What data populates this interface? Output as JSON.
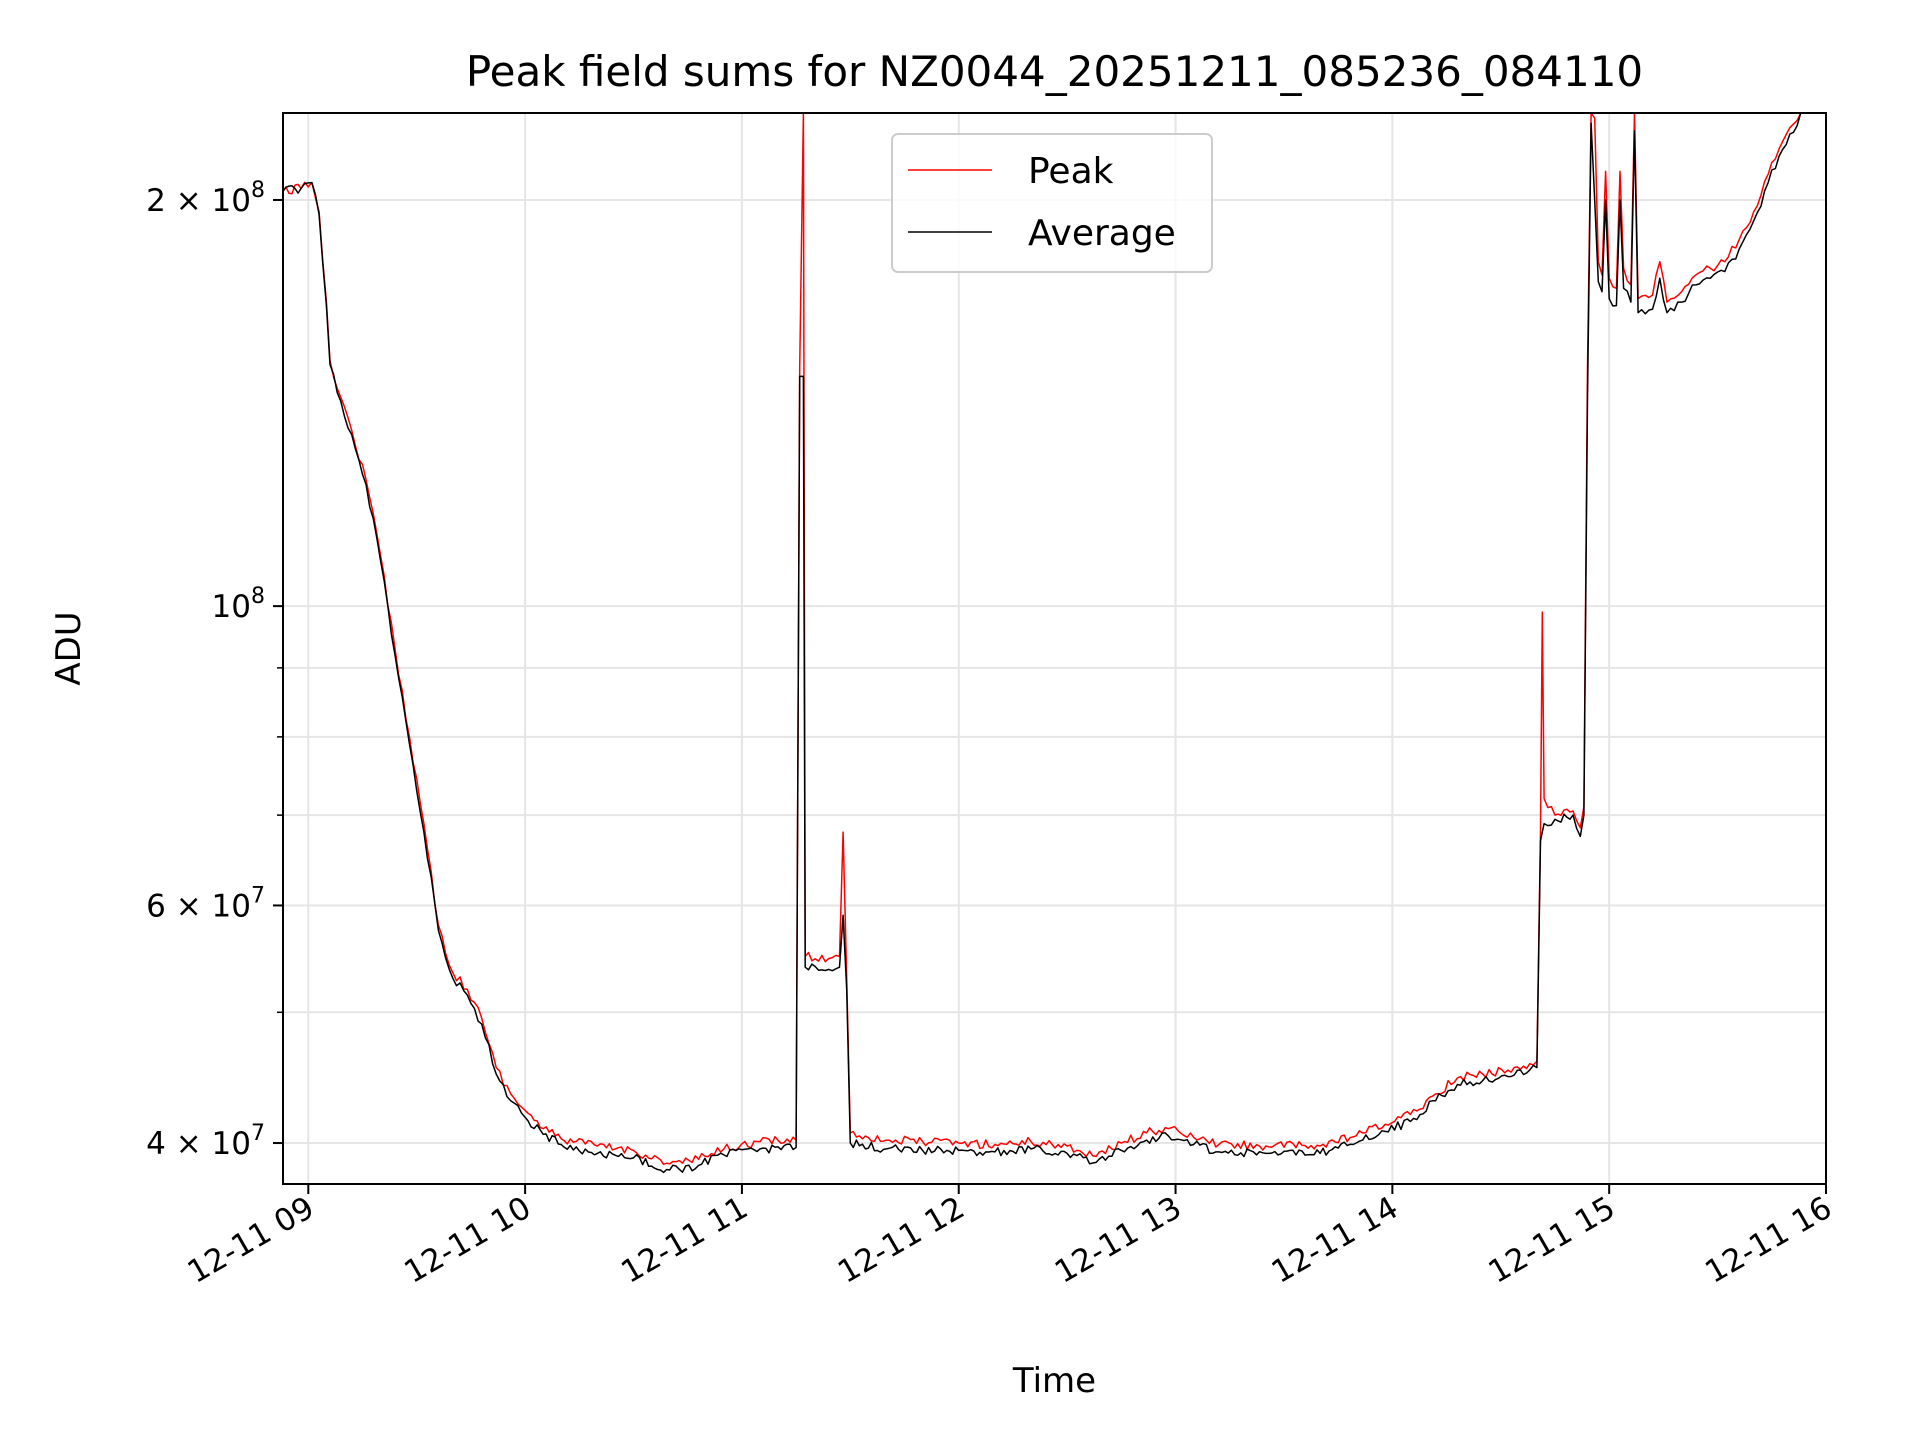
{
  "chart_data": {
    "type": "line",
    "title": "Peak field sums for NZ0044_20251211_085236_084110",
    "xlabel": "Time",
    "ylabel": "ADU",
    "yscale": "log",
    "ylim": [
      37300000,
      232000000
    ],
    "xlim": [
      "12-11 08:53",
      "12-11 16:00"
    ],
    "x_ticks": [
      "12-11 09",
      "12-11 10",
      "12-11 11",
      "12-11 12",
      "12-11 13",
      "12-11 14",
      "12-11 15",
      "12-11 16"
    ],
    "y_ticks": [
      {
        "value": 40000000,
        "label": "4 × 10⁷",
        "base": "4 × 10",
        "exp": "7"
      },
      {
        "value": 60000000,
        "label": "6 × 10⁷",
        "base": "6 × 10",
        "exp": "7"
      },
      {
        "value": 100000000,
        "label": "10⁸",
        "base": "10",
        "exp": "8"
      },
      {
        "value": 200000000,
        "label": "2 × 10⁸",
        "base": "2 × 10",
        "exp": "8"
      }
    ],
    "y_minor_ticks": [
      50000000,
      70000000,
      80000000,
      90000000
    ],
    "grid": true,
    "legend_position": "top-center",
    "series": [
      {
        "name": "Peak",
        "color": "#ff0000",
        "points": [
          [
            "08:53",
            203000000
          ],
          [
            "08:58",
            204000000
          ],
          [
            "09:01",
            206000000
          ],
          [
            "09:03",
            196000000
          ],
          [
            "09:05",
            168000000
          ],
          [
            "09:06",
            152000000
          ],
          [
            "09:08",
            145000000
          ],
          [
            "09:12",
            135000000
          ],
          [
            "09:16",
            124000000
          ],
          [
            "09:20",
            109000000
          ],
          [
            "09:24",
            93000000
          ],
          [
            "09:28",
            80000000
          ],
          [
            "09:32",
            69000000
          ],
          [
            "09:36",
            58000000
          ],
          [
            "09:40",
            53500000
          ],
          [
            "09:44",
            52000000
          ],
          [
            "09:48",
            49500000
          ],
          [
            "09:52",
            45500000
          ],
          [
            "09:56",
            43500000
          ],
          [
            "10:00",
            42300000
          ],
          [
            "10:05",
            41000000
          ],
          [
            "10:10",
            40300000
          ],
          [
            "10:20",
            39800000
          ],
          [
            "10:30",
            39500000
          ],
          [
            "10:40",
            38600000
          ],
          [
            "10:48",
            38900000
          ],
          [
            "10:55",
            39600000
          ],
          [
            "11:05",
            40100000
          ],
          [
            "11:15",
            40200000
          ],
          [
            "11:16",
            150000000
          ],
          [
            "11:17",
            232000000
          ],
          [
            "11:17.5",
            55000000
          ],
          [
            "11:24",
            54800000
          ],
          [
            "11:27",
            55000000
          ],
          [
            "11:28",
            68000000
          ],
          [
            "11:29",
            53000000
          ],
          [
            "11:30",
            40700000
          ],
          [
            "11:40",
            40200000
          ],
          [
            "11:50",
            40100000
          ],
          [
            "12:00",
            40000000
          ],
          [
            "12:10",
            39900000
          ],
          [
            "12:20",
            40100000
          ],
          [
            "12:30",
            39800000
          ],
          [
            "12:38",
            39100000
          ],
          [
            "12:45",
            40000000
          ],
          [
            "12:52",
            40700000
          ],
          [
            "12:58",
            41000000
          ],
          [
            "13:05",
            40400000
          ],
          [
            "13:12",
            39900000
          ],
          [
            "13:25",
            39800000
          ],
          [
            "13:40",
            39800000
          ],
          [
            "13:50",
            40500000
          ],
          [
            "13:58",
            41300000
          ],
          [
            "14:05",
            42000000
          ],
          [
            "14:12",
            43500000
          ],
          [
            "14:18",
            44700000
          ],
          [
            "14:25",
            45000000
          ],
          [
            "14:32",
            45300000
          ],
          [
            "14:38",
            45800000
          ],
          [
            "14:40",
            46000000
          ],
          [
            "14:41",
            68000000
          ],
          [
            "14:41.5",
            99000000
          ],
          [
            "14:42",
            72000000
          ],
          [
            "14:45",
            70000000
          ],
          [
            "14:50",
            70500000
          ],
          [
            "14:52",
            68500000
          ],
          [
            "14:53",
            71000000
          ],
          [
            "14:54",
            150000000
          ],
          [
            "14:55",
            232000000
          ],
          [
            "14:56",
            230000000
          ],
          [
            "14:57",
            180000000
          ],
          [
            "14:58",
            176000000
          ],
          [
            "14:59",
            210000000
          ],
          [
            "15:00",
            175000000
          ],
          [
            "15:02",
            172000000
          ],
          [
            "15:03",
            210000000
          ],
          [
            "15:04",
            178000000
          ],
          [
            "15:06",
            173000000
          ],
          [
            "15:07",
            232000000
          ],
          [
            "15:08",
            169000000
          ],
          [
            "15:12",
            170000000
          ],
          [
            "15:14",
            180000000
          ],
          [
            "15:16",
            168000000
          ],
          [
            "15:20",
            171000000
          ],
          [
            "15:24",
            176000000
          ],
          [
            "15:28",
            178000000
          ],
          [
            "15:32",
            180000000
          ],
          [
            "15:36",
            187000000
          ],
          [
            "15:40",
            196000000
          ],
          [
            "15:44",
            209000000
          ],
          [
            "15:48",
            221000000
          ],
          [
            "15:52",
            229000000
          ],
          [
            "15:53",
            232000000
          ]
        ]
      },
      {
        "name": "Average",
        "color": "#000000",
        "points": [
          [
            "08:53",
            203000000
          ],
          [
            "08:58",
            204000000
          ],
          [
            "09:01",
            206000000
          ],
          [
            "09:03",
            195000000
          ],
          [
            "09:05",
            167000000
          ],
          [
            "09:06",
            151000000
          ],
          [
            "09:08",
            144000000
          ],
          [
            "09:12",
            134000000
          ],
          [
            "09:16",
            123000000
          ],
          [
            "09:20",
            108000000
          ],
          [
            "09:24",
            92000000
          ],
          [
            "09:28",
            79000000
          ],
          [
            "09:32",
            68000000
          ],
          [
            "09:36",
            57500000
          ],
          [
            "09:40",
            53000000
          ],
          [
            "09:44",
            51500000
          ],
          [
            "09:48",
            49000000
          ],
          [
            "09:52",
            45000000
          ],
          [
            "09:56",
            43000000
          ],
          [
            "10:00",
            41800000
          ],
          [
            "10:05",
            40600000
          ],
          [
            "10:10",
            39900000
          ],
          [
            "10:20",
            39300000
          ],
          [
            "10:30",
            39000000
          ],
          [
            "10:40",
            38200000
          ],
          [
            "10:48",
            38500000
          ],
          [
            "10:55",
            39200000
          ],
          [
            "11:05",
            39600000
          ],
          [
            "11:15",
            39700000
          ],
          [
            "11:16",
            148000000
          ],
          [
            "11:17",
            148000000
          ],
          [
            "11:17.5",
            54000000
          ],
          [
            "11:24",
            53800000
          ],
          [
            "11:27",
            54000000
          ],
          [
            "11:28",
            59000000
          ],
          [
            "11:29",
            52000000
          ],
          [
            "11:30",
            40000000
          ],
          [
            "11:40",
            39600000
          ],
          [
            "11:50",
            39500000
          ],
          [
            "12:00",
            39500000
          ],
          [
            "12:10",
            39400000
          ],
          [
            "12:20",
            39600000
          ],
          [
            "12:30",
            39300000
          ],
          [
            "12:38",
            38700000
          ],
          [
            "12:45",
            39500000
          ],
          [
            "12:52",
            40200000
          ],
          [
            "12:58",
            40500000
          ],
          [
            "13:05",
            39900000
          ],
          [
            "13:12",
            39400000
          ],
          [
            "13:25",
            39300000
          ],
          [
            "13:40",
            39300000
          ],
          [
            "13:50",
            40000000
          ],
          [
            "13:58",
            40800000
          ],
          [
            "14:05",
            41500000
          ],
          [
            "14:12",
            43000000
          ],
          [
            "14:18",
            44200000
          ],
          [
            "14:25",
            44500000
          ],
          [
            "14:32",
            44800000
          ],
          [
            "14:38",
            45300000
          ],
          [
            "14:40",
            45500000
          ],
          [
            "14:41",
            67000000
          ],
          [
            "14:41.5",
            68000000
          ],
          [
            "14:42",
            69000000
          ],
          [
            "14:45",
            69500000
          ],
          [
            "14:50",
            70000000
          ],
          [
            "14:52",
            67500000
          ],
          [
            "14:53",
            70000000
          ],
          [
            "14:54",
            143000000
          ],
          [
            "14:55",
            228000000
          ],
          [
            "14:56",
            200000000
          ],
          [
            "14:57",
            174000000
          ],
          [
            "14:58",
            171000000
          ],
          [
            "14:59",
            200000000
          ],
          [
            "15:00",
            169000000
          ],
          [
            "15:02",
            167000000
          ],
          [
            "15:03",
            200000000
          ],
          [
            "15:04",
            172000000
          ],
          [
            "15:06",
            168000000
          ],
          [
            "15:07",
            225000000
          ],
          [
            "15:08",
            165000000
          ],
          [
            "15:12",
            166000000
          ],
          [
            "15:14",
            175000000
          ],
          [
            "15:16",
            165000000
          ],
          [
            "15:20",
            168000000
          ],
          [
            "15:24",
            173000000
          ],
          [
            "15:28",
            175000000
          ],
          [
            "15:32",
            177000000
          ],
          [
            "15:36",
            184000000
          ],
          [
            "15:40",
            193000000
          ],
          [
            "15:44",
            206000000
          ],
          [
            "15:48",
            218000000
          ],
          [
            "15:52",
            227000000
          ],
          [
            "15:53",
            232000000
          ]
        ]
      }
    ]
  }
}
